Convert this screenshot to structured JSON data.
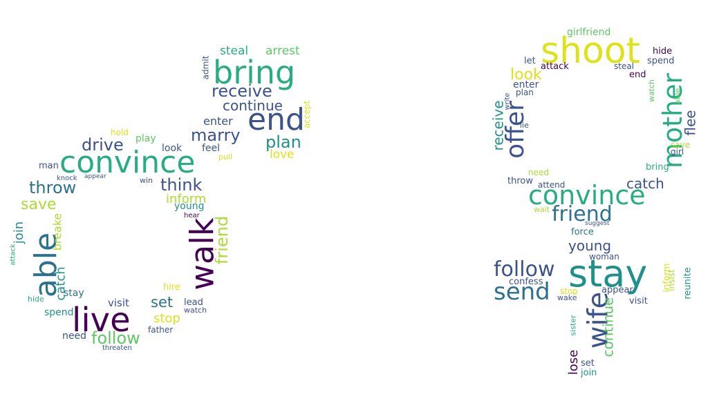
{
  "colors": {
    "c1": "#440154",
    "c2": "#3b528b",
    "c3": "#2c728e",
    "c4": "#21908d",
    "c5": "#27ad81",
    "c6": "#5dc863",
    "c7": "#aadc32",
    "c8": "#dde318"
  },
  "male_cloud": {
    "words": [
      {
        "text": "bring",
        "color": "c5"
      },
      {
        "text": "end",
        "color": "c2"
      },
      {
        "text": "convince",
        "color": "c5"
      },
      {
        "text": "walk",
        "color": "c1"
      },
      {
        "text": "live",
        "color": "c1"
      },
      {
        "text": "able",
        "color": "c3"
      },
      {
        "text": "receive",
        "color": "c2"
      },
      {
        "text": "continue",
        "color": "c2"
      },
      {
        "text": "marry",
        "color": "c2"
      },
      {
        "text": "plan",
        "color": "c4"
      },
      {
        "text": "drive",
        "color": "c2"
      },
      {
        "text": "throw",
        "color": "c3"
      },
      {
        "text": "think",
        "color": "c2"
      },
      {
        "text": "save",
        "color": "c7"
      },
      {
        "text": "follow",
        "color": "c6"
      },
      {
        "text": "friend",
        "color": "c7"
      },
      {
        "text": "steal",
        "color": "c5"
      },
      {
        "text": "arrest",
        "color": "c6"
      },
      {
        "text": "love",
        "color": "c8"
      },
      {
        "text": "enter",
        "color": "c2"
      },
      {
        "text": "inform",
        "color": "c7"
      },
      {
        "text": "set",
        "color": "c3"
      },
      {
        "text": "stop",
        "color": "c8"
      },
      {
        "text": "catch",
        "color": "c4"
      },
      {
        "text": "join",
        "color": "c4"
      },
      {
        "text": "breake",
        "color": "c7"
      },
      {
        "text": "visit",
        "color": "c2"
      },
      {
        "text": "stay",
        "color": "c3"
      },
      {
        "text": "spend",
        "color": "c4"
      },
      {
        "text": "need",
        "color": "c2"
      },
      {
        "text": "young",
        "color": "c4"
      },
      {
        "text": "look",
        "color": "c2"
      },
      {
        "text": "feel",
        "color": "c2"
      },
      {
        "text": "play",
        "color": "c6"
      },
      {
        "text": "man",
        "color": "c2"
      },
      {
        "text": "admit",
        "color": "c2"
      },
      {
        "text": "accept",
        "color": "c8"
      },
      {
        "text": "hold",
        "color": "c8"
      },
      {
        "text": "pull",
        "color": "c8"
      },
      {
        "text": "win",
        "color": "c2"
      },
      {
        "text": "knock",
        "color": "c2"
      },
      {
        "text": "appear",
        "color": "c2"
      },
      {
        "text": "hire",
        "color": "c8"
      },
      {
        "text": "lead",
        "color": "c2"
      },
      {
        "text": "watch",
        "color": "c2"
      },
      {
        "text": "father",
        "color": "c2"
      },
      {
        "text": "threaten",
        "color": "c2"
      },
      {
        "text": "hear",
        "color": "c1"
      },
      {
        "text": "attack",
        "color": "c5"
      },
      {
        "text": "hide",
        "color": "c5"
      }
    ]
  },
  "female_cloud": {
    "words": [
      {
        "text": "shoot",
        "color": "c8"
      },
      {
        "text": "girlfriend",
        "color": "c6"
      },
      {
        "text": "offer",
        "color": "c2"
      },
      {
        "text": "mother",
        "color": "c5"
      },
      {
        "text": "convince",
        "color": "c5"
      },
      {
        "text": "friend",
        "color": "c3"
      },
      {
        "text": "stay",
        "color": "c4"
      },
      {
        "text": "send",
        "color": "c3"
      },
      {
        "text": "follow",
        "color": "c2"
      },
      {
        "text": "wife",
        "color": "c2"
      },
      {
        "text": "continue",
        "color": "c6"
      },
      {
        "text": "look",
        "color": "c8"
      },
      {
        "text": "receive",
        "color": "c4"
      },
      {
        "text": "flee",
        "color": "c2"
      },
      {
        "text": "catch",
        "color": "c2"
      },
      {
        "text": "young",
        "color": "c2"
      },
      {
        "text": "lose",
        "color": "c1"
      },
      {
        "text": "hide",
        "color": "c1"
      },
      {
        "text": "spend",
        "color": "c2"
      },
      {
        "text": "let",
        "color": "c2"
      },
      {
        "text": "attack",
        "color": "c1"
      },
      {
        "text": "steal",
        "color": "c2"
      },
      {
        "text": "end",
        "color": "c1"
      },
      {
        "text": "enter",
        "color": "c2"
      },
      {
        "text": "plan",
        "color": "c2"
      },
      {
        "text": "write",
        "color": "c2"
      },
      {
        "text": "lie",
        "color": "c2"
      },
      {
        "text": "watch",
        "color": "c6"
      },
      {
        "text": "able",
        "color": "c6"
      },
      {
        "text": "save",
        "color": "c7"
      },
      {
        "text": "girl",
        "color": "c2"
      },
      {
        "text": "bring",
        "color": "c5"
      },
      {
        "text": "need",
        "color": "c7"
      },
      {
        "text": "throw",
        "color": "c2"
      },
      {
        "text": "attend",
        "color": "c2"
      },
      {
        "text": "wait",
        "color": "c7"
      },
      {
        "text": "suggest",
        "color": "c2"
      },
      {
        "text": "force",
        "color": "c3"
      },
      {
        "text": "woman",
        "color": "c2"
      },
      {
        "text": "confess",
        "color": "c2"
      },
      {
        "text": "stop",
        "color": "c8"
      },
      {
        "text": "wake",
        "color": "c2"
      },
      {
        "text": "appear",
        "color": "c2"
      },
      {
        "text": "visit",
        "color": "c2"
      },
      {
        "text": "inform",
        "color": "c8"
      },
      {
        "text": "insist",
        "color": "c7"
      },
      {
        "text": "reunite",
        "color": "c4"
      },
      {
        "text": "sister",
        "color": "c5"
      },
      {
        "text": "set",
        "color": "c2"
      },
      {
        "text": "join",
        "color": "c4"
      }
    ]
  }
}
